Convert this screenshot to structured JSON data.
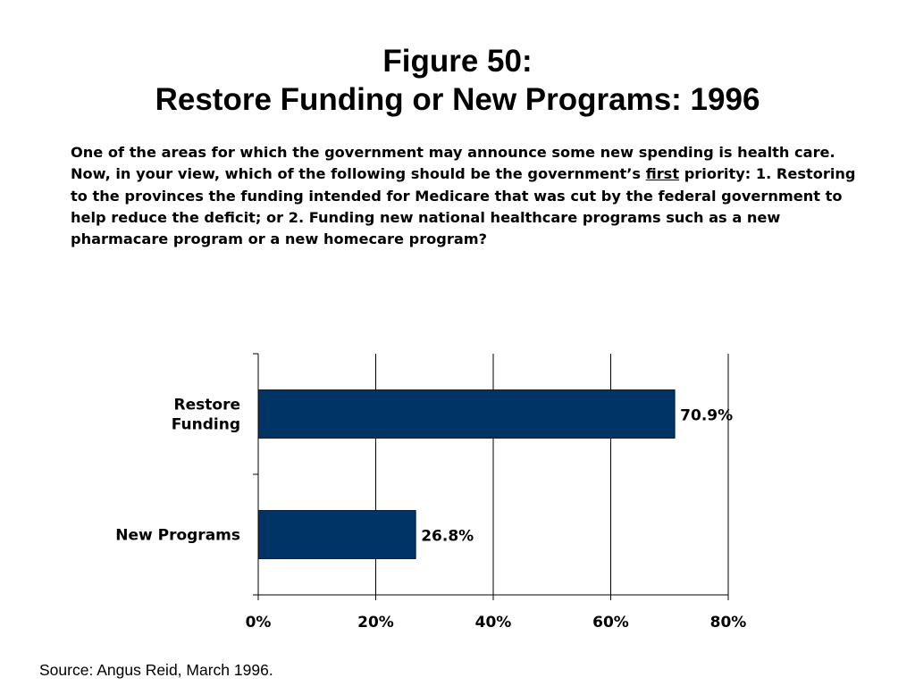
{
  "title_line1": "Figure 50:",
  "title_line2": "Restore Funding or New Programs: 1996",
  "question": {
    "before": "One of the areas for which the government may announce some new spending is health care. Now, in your view, which of the following should be the government’s ",
    "emphasis": "first",
    "after": " priority: 1. Restoring to the provinces the funding intended for Medicare that was cut by the federal government to help reduce the deficit; or 2. Funding new national healthcare programs such as a new pharmacare program or a new homecare program?"
  },
  "source": "Source: Angus Reid, March 1996.",
  "colors": {
    "bar": "#003366",
    "grid": "#000000"
  },
  "chart_data": {
    "type": "bar",
    "orientation": "horizontal",
    "categories": [
      [
        "Restore",
        "Funding"
      ],
      [
        "New Programs"
      ]
    ],
    "values": [
      70.9,
      26.8
    ],
    "data_labels": [
      "70.9%",
      "26.8%"
    ],
    "xlim": [
      0,
      80
    ],
    "xticks": [
      0,
      20,
      40,
      60,
      80
    ],
    "xtick_labels": [
      "0%",
      "20%",
      "40%",
      "60%",
      "80%"
    ],
    "grid": "vertical",
    "xlabel": "",
    "ylabel": ""
  }
}
